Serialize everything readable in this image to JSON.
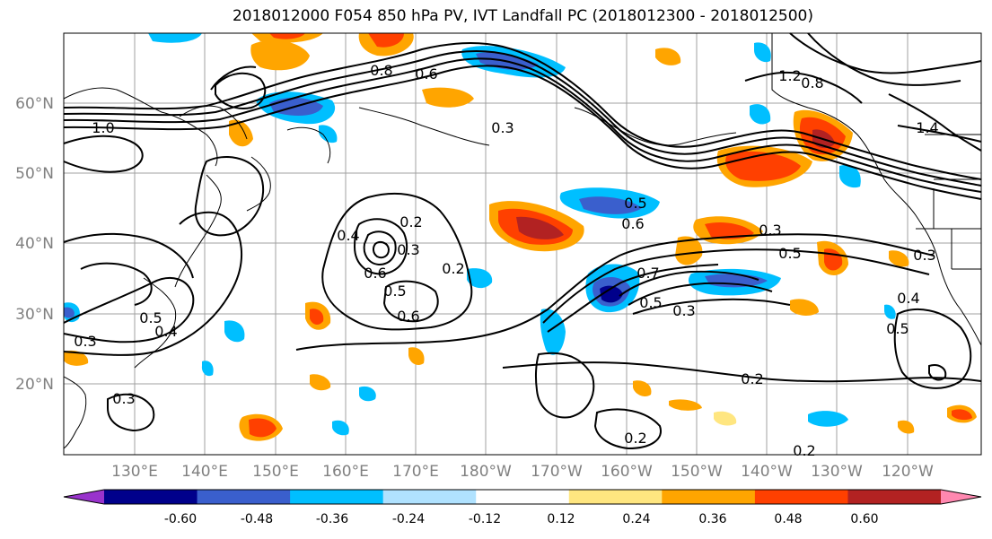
{
  "title": "2018012000 F054 850 hPa PV, IVT Landfall PC (2018012300 - 2018012500)",
  "lat_labels": [
    "60°N",
    "50°N",
    "40°N",
    "30°N",
    "20°N"
  ],
  "lon_labels": [
    "130°E",
    "140°E",
    "150°E",
    "160°E",
    "170°E",
    "180°W",
    "170°W",
    "160°W",
    "150°W",
    "140°W",
    "130°W",
    "120°W"
  ],
  "colorbar": {
    "ticks": [
      "-0.60",
      "-0.48",
      "-0.36",
      "-0.24",
      "-0.12",
      "0.12",
      "0.24",
      "0.36",
      "0.48",
      "0.60"
    ],
    "colors": [
      "#9933cc",
      "#00008b",
      "#3a5fcd",
      "#00bfff",
      "#b0e2ff",
      "#ffffff",
      "#ffe680",
      "#ffa500",
      "#ff4000",
      "#b22222",
      "#ff88b0"
    ]
  },
  "contour_labels": [
    "1.0",
    "0.8",
    "0.6",
    "0.3",
    "0.4",
    "0.2",
    "0.2",
    "0.3",
    "0.6",
    "0.5",
    "0.4",
    "0.6",
    "0.5",
    "0.3",
    "0.5",
    "0.7",
    "0.5",
    "0.6",
    "0.3",
    "0.3",
    "0.5",
    "0.3",
    "0.4",
    "0.5",
    "0.2",
    "0.2",
    "0.2",
    "1.4",
    "1.2",
    "0.8",
    "0.3"
  ]
}
